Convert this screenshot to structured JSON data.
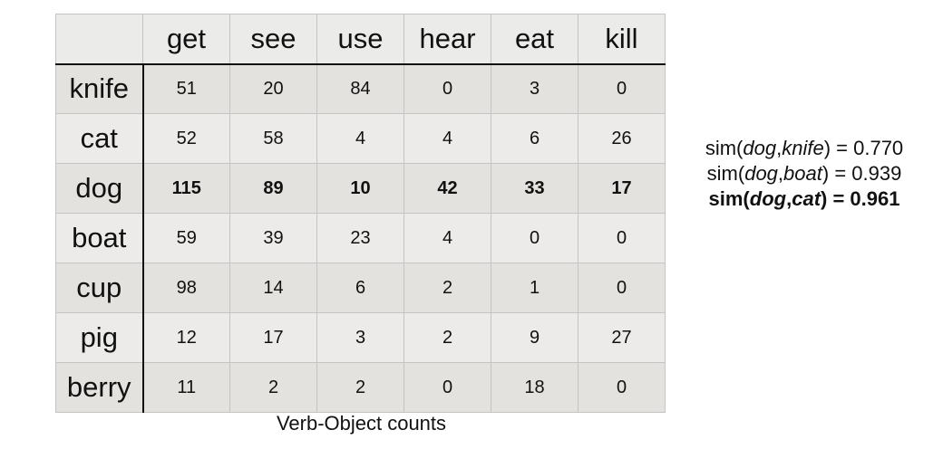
{
  "table": {
    "corner": "",
    "columns": [
      "get",
      "see",
      "use",
      "hear",
      "eat",
      "kill"
    ],
    "rows": [
      {
        "label": "knife",
        "values": [
          "51",
          "20",
          "84",
          "0",
          "3",
          "0"
        ]
      },
      {
        "label": "cat",
        "values": [
          "52",
          "58",
          "4",
          "4",
          "6",
          "26"
        ]
      },
      {
        "label": "dog",
        "values": [
          "115",
          "89",
          "10",
          "42",
          "33",
          "17"
        ]
      },
      {
        "label": "boat",
        "values": [
          "59",
          "39",
          "23",
          "4",
          "0",
          "0"
        ]
      },
      {
        "label": "cup",
        "values": [
          "98",
          "14",
          "6",
          "2",
          "1",
          "0"
        ]
      },
      {
        "label": "pig",
        "values": [
          "12",
          "17",
          "3",
          "2",
          "9",
          "27"
        ]
      },
      {
        "label": "berry",
        "values": [
          "11",
          "2",
          "2",
          "0",
          "18",
          "0"
        ]
      }
    ],
    "bold_row": "dog",
    "caption": "Verb-Object counts"
  },
  "similarities": [
    {
      "prefix": "sim(",
      "a": "dog",
      "sep": ",",
      "b": "knife",
      "suffix": ") = ",
      "value": "0.770",
      "bold": false
    },
    {
      "prefix": "sim(",
      "a": "dog",
      "sep": ",",
      "b": "boat",
      "suffix": ") = ",
      "value": "0.939",
      "bold": false
    },
    {
      "prefix": "sim(",
      "a": "dog",
      "sep": ",",
      "b": "cat",
      "suffix": ") = ",
      "value": "0.961",
      "bold": true
    }
  ]
}
